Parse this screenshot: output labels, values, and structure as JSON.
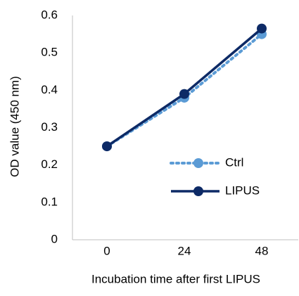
{
  "chart_data": {
    "type": "line",
    "x_label": "Incubation time after first LIPUS",
    "y_label": "OD value (450 nm)",
    "categories": [
      "0",
      "24",
      "48"
    ],
    "series": [
      {
        "name": "Ctrl",
        "color": "#5b9bd5",
        "dashed": true,
        "values": [
          0.25,
          0.38,
          0.55
        ]
      },
      {
        "name": "LIPUS",
        "color": "#0d2a66",
        "dashed": false,
        "values": [
          0.25,
          0.39,
          0.565
        ]
      }
    ],
    "ylim": [
      0,
      0.6
    ],
    "yticks": [
      0,
      0.1,
      0.2,
      0.3,
      0.4,
      0.5,
      0.6
    ],
    "grid": false
  }
}
